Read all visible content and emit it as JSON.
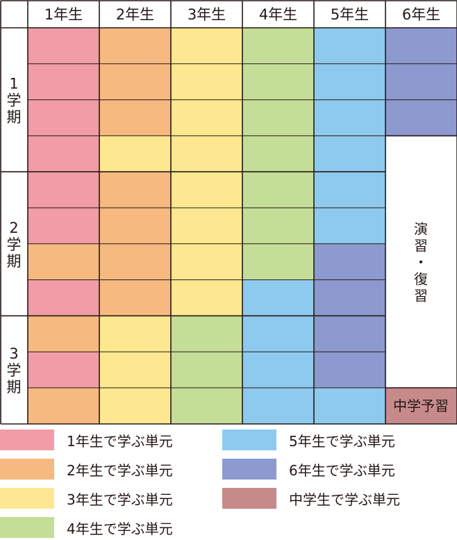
{
  "colors": {
    "g1": "#F19CA6",
    "g2": "#F6B97F",
    "g3": "#FDE891",
    "g4": "#C4DE97",
    "g5": "#8ECAEE",
    "g6": "#8C9ACF",
    "jh": "#C78A8A",
    "line": "#231815"
  },
  "header": {
    "columns": [
      "1年生",
      "2年生",
      "3年生",
      "4年生",
      "5年生",
      "6年生"
    ]
  },
  "terms": [
    {
      "label": "1学期",
      "rows": 4
    },
    {
      "label": "2学期",
      "rows": 4
    },
    {
      "label": "3学期",
      "rows": 3
    }
  ],
  "grid": [
    [
      "g1",
      "g2",
      "g3",
      "g4",
      "g5",
      "g6"
    ],
    [
      "g1",
      "g2",
      "g3",
      "g4",
      "g5",
      "g6"
    ],
    [
      "g1",
      "g2",
      "g3",
      "g4",
      "g5",
      "g6"
    ],
    [
      "g1",
      "g3",
      "g3",
      "g4",
      "g5",
      "review"
    ],
    [
      "g1",
      "g2",
      "g3",
      "g4",
      "g5",
      "review"
    ],
    [
      "g1",
      "g2",
      "g3",
      "g4",
      "g5",
      "review"
    ],
    [
      "g2",
      "g2",
      "g3",
      "g4",
      "g6",
      "review"
    ],
    [
      "g1",
      "g2",
      "g3",
      "g5",
      "g6",
      "review"
    ],
    [
      "g2",
      "g3",
      "g4",
      "g5",
      "g6",
      "review"
    ],
    [
      "g1",
      "g3",
      "g4",
      "g5",
      "g6",
      "review"
    ],
    [
      "g2",
      "g3",
      "g4",
      "g5",
      "g5",
      "jh"
    ]
  ],
  "review_label": "演習・復習",
  "jh_label": "中学予習",
  "legend": [
    {
      "key": "g1",
      "label": "1年生で学ぶ単元"
    },
    {
      "key": "g2",
      "label": "2年生で学ぶ単元"
    },
    {
      "key": "g3",
      "label": "3年生で学ぶ単元"
    },
    {
      "key": "g4",
      "label": "4年生で学ぶ単元"
    },
    {
      "key": "g5",
      "label": "5年生で学ぶ単元"
    },
    {
      "key": "g6",
      "label": "6年生で学ぶ単元"
    },
    {
      "key": "jh",
      "label": "中学生で学ぶ単元"
    }
  ]
}
